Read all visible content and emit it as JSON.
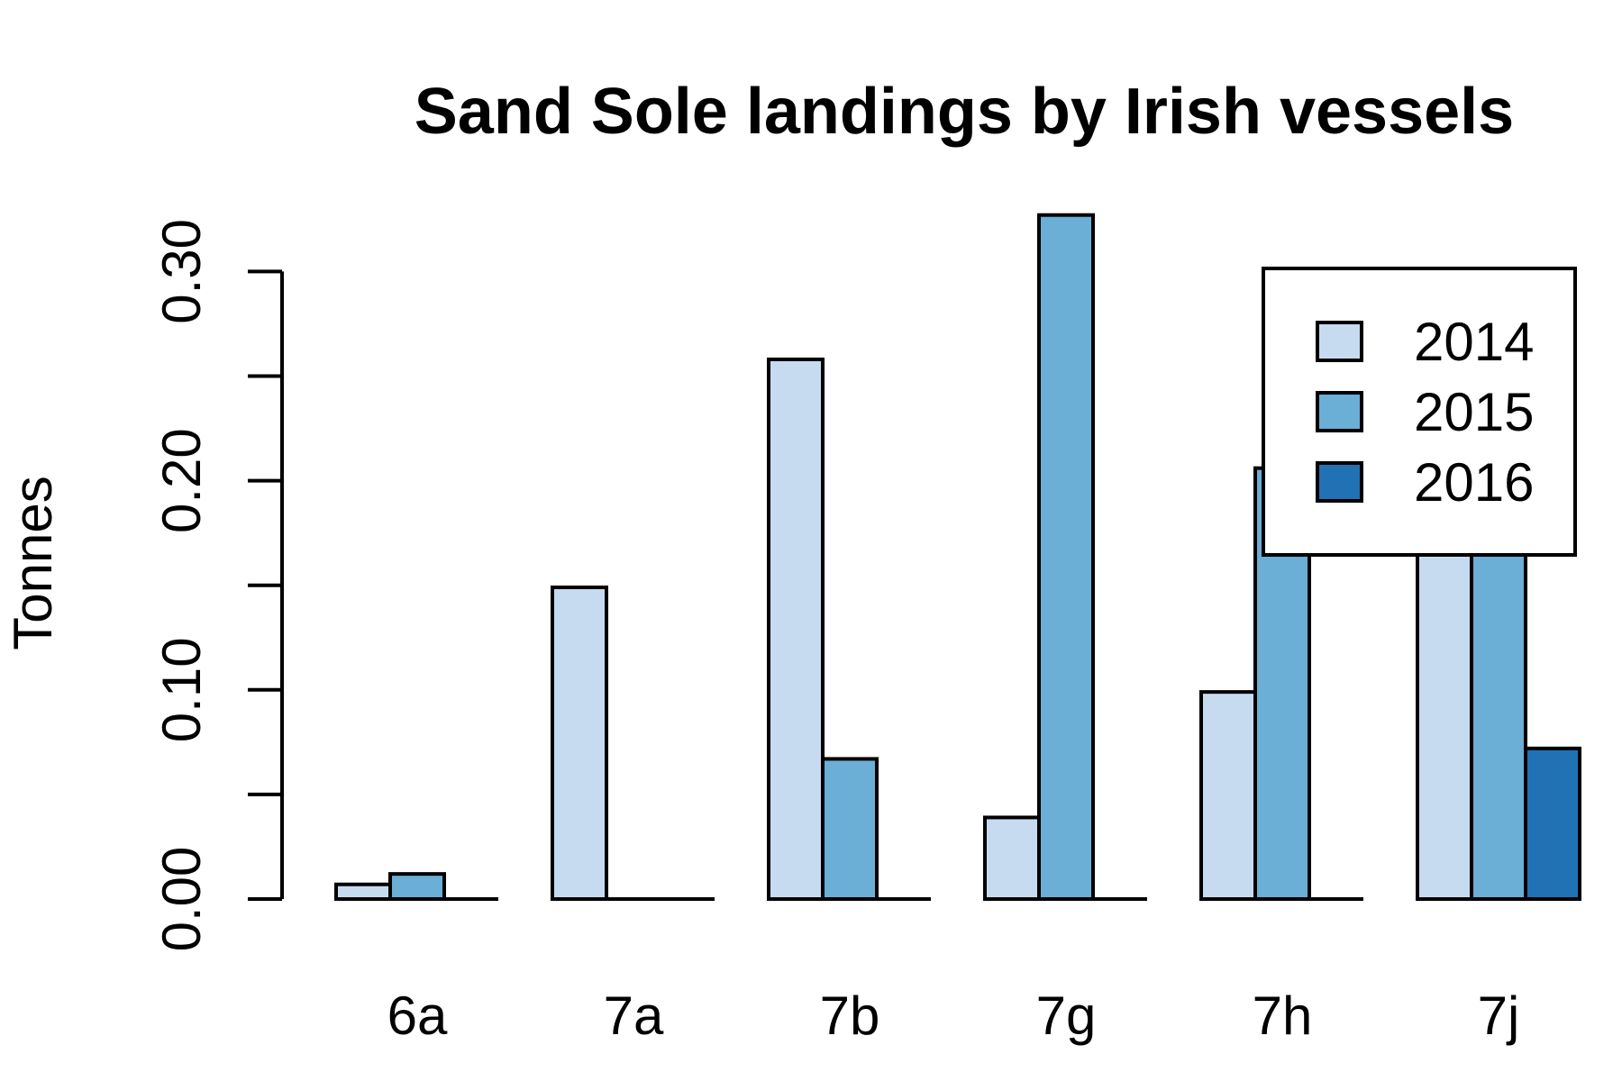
{
  "chart_data": {
    "type": "bar",
    "title": "Sand Sole landings by Irish vessels",
    "xlabel": "",
    "ylabel": "Tonnes",
    "ylim": [
      0,
      0.33
    ],
    "y_ticks": [
      0.0,
      0.05,
      0.1,
      0.15,
      0.2,
      0.25,
      0.3
    ],
    "y_tick_labels": [
      "0.00",
      "",
      "0.10",
      "",
      "0.20",
      "",
      "0.30"
    ],
    "grid": false,
    "legend_position": "top-right",
    "categories": [
      "6a",
      "7a",
      "7b",
      "7g",
      "7h",
      "7j"
    ],
    "series": [
      {
        "name": "2014",
        "color": "#c6dbef",
        "values": [
          0.007,
          0.149,
          0.258,
          0.039,
          0.099,
          0.205
        ]
      },
      {
        "name": "2015",
        "color": "#6baed6",
        "values": [
          0.012,
          0.0,
          0.067,
          0.327,
          0.206,
          0.205
        ]
      },
      {
        "name": "2016",
        "color": "#2171b5",
        "values": [
          0.0,
          0.0,
          0.0,
          0.0,
          0.0,
          0.072
        ]
      }
    ]
  }
}
